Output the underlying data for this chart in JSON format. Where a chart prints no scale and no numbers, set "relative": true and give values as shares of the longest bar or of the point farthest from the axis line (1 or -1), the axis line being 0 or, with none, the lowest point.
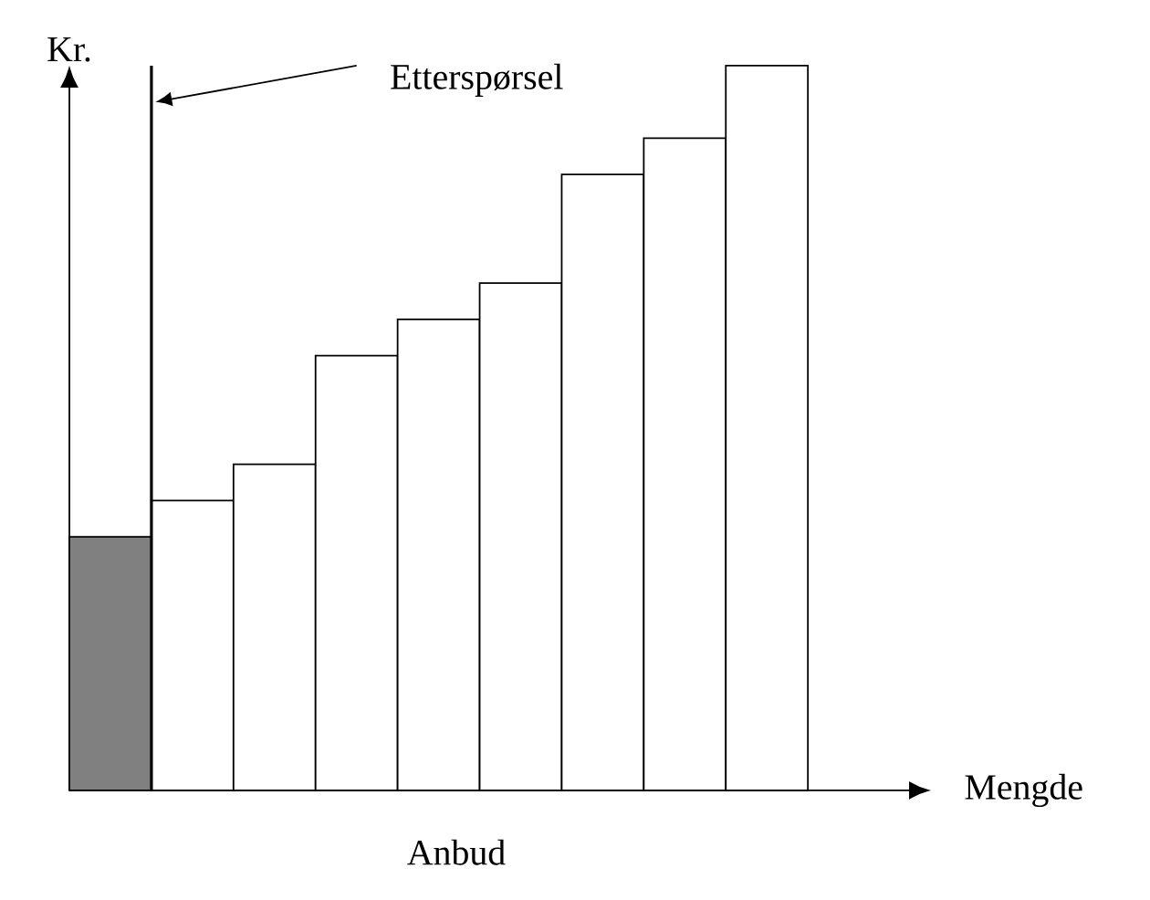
{
  "chart_data": {
    "type": "bar",
    "relative": true,
    "categories": [
      null,
      null,
      null,
      null,
      null,
      null,
      null,
      null,
      null
    ],
    "values": [
      0.35,
      0.4,
      0.45,
      0.6,
      0.65,
      0.7,
      0.85,
      0.9,
      1.0
    ],
    "colors": [
      "#808080",
      "#ffffff",
      "#ffffff",
      "#ffffff",
      "#ffffff",
      "#ffffff",
      "#ffffff",
      "#ffffff",
      "#ffffff"
    ],
    "xlabel": "Mengde",
    "ylabel": "Kr.",
    "annotations": [
      "Etterspørsel",
      "Anbud"
    ]
  }
}
